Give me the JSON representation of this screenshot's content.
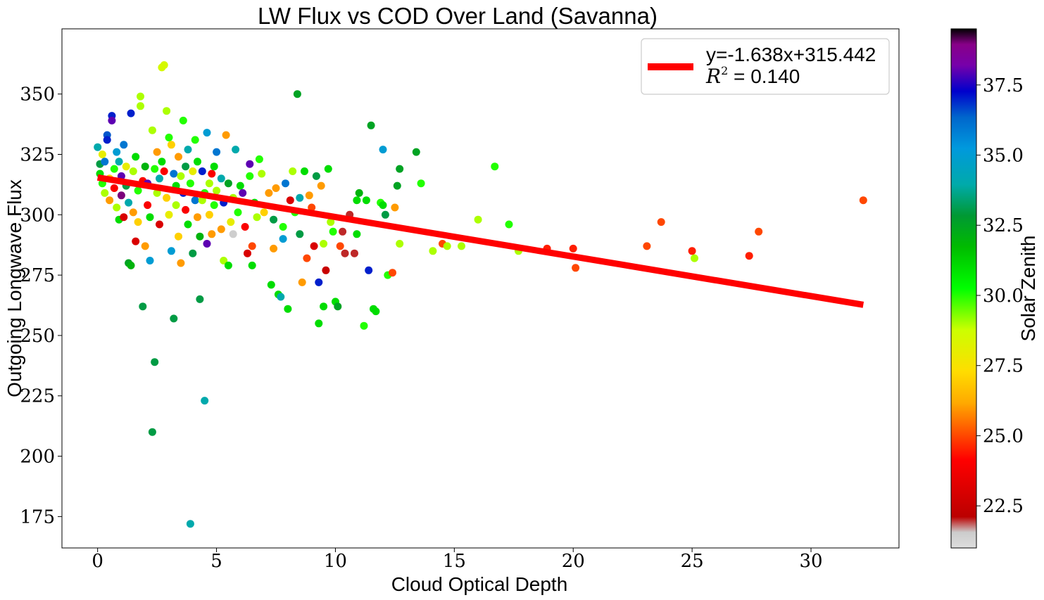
{
  "chart_data": {
    "type": "scatter",
    "title": "LW Flux vs COD Over Land (Savanna)",
    "xlabel": "Cloud Optical Depth",
    "ylabel": "Outgoing Longwave Flux",
    "xlim": [
      -1.5,
      33.7
    ],
    "ylim": [
      162,
      377
    ],
    "xticks": [
      0,
      5,
      10,
      15,
      20,
      25,
      30
    ],
    "yticks": [
      175,
      200,
      225,
      250,
      275,
      300,
      325,
      350
    ],
    "grid": false,
    "legend": {
      "placement": "top-right",
      "entries": [
        {
          "text": "y=-1.638x+315.442",
          "color": "#ff0000"
        },
        {
          "r2_symbol": "R",
          "r2_exp": "2",
          "r2_value": " = 0.140"
        }
      ]
    },
    "fit_line": {
      "slope": -1.638,
      "intercept": 315.442,
      "x_range": [
        0,
        32.2
      ],
      "color": "#ff0000"
    },
    "colorbar": {
      "label": "Solar Zenith",
      "range": [
        21.0,
        39.5
      ],
      "ticks": [
        22.5,
        25.0,
        27.5,
        30.0,
        32.5,
        35.0,
        37.5
      ],
      "colormap": "nipy_spectral"
    },
    "series": [
      {
        "columns": [
          "x",
          "y",
          "solar_zenith"
        ],
        "points": [
          [
            0.0,
            328,
            34
          ],
          [
            0.1,
            321,
            33
          ],
          [
            0.1,
            317,
            31
          ],
          [
            0.2,
            325,
            28
          ],
          [
            0.2,
            313,
            30
          ],
          [
            0.3,
            309,
            29
          ],
          [
            0.3,
            322,
            36
          ],
          [
            0.4,
            333,
            36.5
          ],
          [
            0.4,
            331,
            37
          ],
          [
            0.5,
            315,
            27
          ],
          [
            0.5,
            306,
            26
          ],
          [
            0.6,
            341,
            37
          ],
          [
            0.6,
            339,
            38
          ],
          [
            0.7,
            319,
            30
          ],
          [
            0.7,
            311,
            24
          ],
          [
            0.8,
            326,
            35
          ],
          [
            0.8,
            303,
            29
          ],
          [
            0.9,
            298,
            31
          ],
          [
            0.9,
            322,
            34
          ],
          [
            1.0,
            316,
            38
          ],
          [
            1.0,
            308,
            39
          ],
          [
            1.1,
            299,
            23
          ],
          [
            1.1,
            329,
            36
          ],
          [
            1.2,
            312,
            33
          ],
          [
            1.2,
            320,
            28
          ],
          [
            1.3,
            305,
            34
          ],
          [
            1.3,
            280,
            32.5
          ],
          [
            1.4,
            279,
            32
          ],
          [
            1.4,
            342,
            37
          ],
          [
            1.5,
            318,
            29
          ],
          [
            1.5,
            301,
            26
          ],
          [
            1.6,
            289,
            23
          ],
          [
            1.6,
            324,
            31
          ],
          [
            1.7,
            310,
            30
          ],
          [
            1.7,
            297,
            27
          ],
          [
            1.8,
            345,
            29
          ],
          [
            1.8,
            349,
            29
          ],
          [
            1.9,
            314,
            24
          ],
          [
            1.9,
            262,
            33
          ],
          [
            2.0,
            320,
            32
          ],
          [
            2.0,
            287,
            26
          ],
          [
            2.1,
            313,
            38
          ],
          [
            2.1,
            304,
            24
          ],
          [
            2.2,
            299,
            31
          ],
          [
            2.2,
            281,
            35
          ],
          [
            2.3,
            210,
            33
          ],
          [
            2.3,
            335,
            29
          ],
          [
            2.4,
            319,
            30
          ],
          [
            2.4,
            239,
            33
          ],
          [
            2.5,
            326,
            26
          ],
          [
            2.5,
            309,
            29
          ],
          [
            2.6,
            296,
            23
          ],
          [
            2.6,
            315,
            34
          ],
          [
            2.7,
            322,
            31
          ],
          [
            2.7,
            361,
            28.5
          ],
          [
            2.8,
            362,
            28.5
          ],
          [
            2.8,
            318,
            24
          ],
          [
            2.9,
            343,
            29
          ],
          [
            2.9,
            307,
            27
          ],
          [
            3.0,
            332,
            30
          ],
          [
            3.0,
            300,
            28
          ],
          [
            3.1,
            329,
            27
          ],
          [
            3.1,
            285,
            35
          ],
          [
            3.2,
            317,
            36
          ],
          [
            3.2,
            257,
            33
          ],
          [
            3.3,
            312,
            31
          ],
          [
            3.3,
            304,
            29
          ],
          [
            3.4,
            324,
            26
          ],
          [
            3.4,
            291,
            27
          ],
          [
            3.5,
            316,
            29
          ],
          [
            3.5,
            280,
            26
          ],
          [
            3.6,
            339,
            30
          ],
          [
            3.6,
            309,
            37
          ],
          [
            3.7,
            302,
            24
          ],
          [
            3.7,
            320,
            33
          ],
          [
            3.8,
            327,
            34
          ],
          [
            3.8,
            296,
            31
          ],
          [
            3.9,
            313,
            30
          ],
          [
            3.9,
            172,
            34
          ],
          [
            4.0,
            318,
            28
          ],
          [
            4.0,
            284,
            33
          ],
          [
            4.1,
            306,
            36
          ],
          [
            4.1,
            331,
            30
          ],
          [
            4.2,
            322,
            31
          ],
          [
            4.2,
            299,
            26
          ],
          [
            4.3,
            291,
            32
          ],
          [
            4.3,
            265,
            33
          ],
          [
            4.4,
            318,
            37
          ],
          [
            4.4,
            306,
            29
          ],
          [
            4.5,
            309,
            30
          ],
          [
            4.5,
            223,
            34
          ],
          [
            4.6,
            288,
            38
          ],
          [
            4.6,
            334,
            35
          ],
          [
            4.7,
            313,
            29
          ],
          [
            4.7,
            300,
            27
          ],
          [
            4.8,
            317,
            24
          ],
          [
            4.8,
            292,
            26
          ],
          [
            4.9,
            320,
            31
          ],
          [
            4.9,
            304,
            30
          ],
          [
            5.0,
            326,
            36
          ],
          [
            5.0,
            310,
            29
          ],
          [
            5.2,
            315,
            34
          ],
          [
            5.2,
            294,
            26
          ],
          [
            5.3,
            305,
            37
          ],
          [
            5.3,
            281,
            29
          ],
          [
            5.4,
            333,
            26
          ],
          [
            5.5,
            279,
            31
          ],
          [
            5.5,
            313,
            32.5
          ],
          [
            5.6,
            297,
            28
          ],
          [
            5.7,
            307,
            29
          ],
          [
            5.7,
            292,
            21.5
          ],
          [
            5.8,
            327,
            34
          ],
          [
            5.9,
            301,
            30
          ],
          [
            6.0,
            312,
            31
          ],
          [
            6.1,
            309,
            38
          ],
          [
            6.2,
            295,
            24
          ],
          [
            6.3,
            284,
            23
          ],
          [
            6.4,
            321,
            38
          ],
          [
            6.4,
            316,
            30
          ],
          [
            6.5,
            287,
            25
          ],
          [
            6.5,
            279,
            31
          ],
          [
            6.6,
            305,
            31
          ],
          [
            6.7,
            299,
            29
          ],
          [
            6.8,
            323,
            30
          ],
          [
            6.9,
            317,
            29
          ],
          [
            7.0,
            301,
            27
          ],
          [
            7.2,
            309,
            26
          ],
          [
            7.3,
            271,
            31
          ],
          [
            7.4,
            298,
            33
          ],
          [
            7.4,
            286,
            26
          ],
          [
            7.5,
            311,
            26
          ],
          [
            7.6,
            267,
            31
          ],
          [
            7.7,
            266,
            34
          ],
          [
            7.8,
            295,
            30
          ],
          [
            7.8,
            290,
            35
          ],
          [
            7.9,
            313,
            36
          ],
          [
            8.0,
            261,
            31
          ],
          [
            8.1,
            306,
            23
          ],
          [
            8.2,
            318,
            29
          ],
          [
            8.3,
            301,
            30
          ],
          [
            8.4,
            350,
            32.5
          ],
          [
            8.5,
            307,
            34
          ],
          [
            8.5,
            292,
            33
          ],
          [
            8.6,
            272,
            26
          ],
          [
            8.7,
            318,
            31
          ],
          [
            8.8,
            282,
            25
          ],
          [
            8.9,
            308,
            26
          ],
          [
            9.0,
            303,
            25
          ],
          [
            9.1,
            287,
            23
          ],
          [
            9.2,
            316,
            33
          ],
          [
            9.3,
            272,
            37
          ],
          [
            9.3,
            255,
            31
          ],
          [
            9.4,
            312,
            26
          ],
          [
            9.5,
            288,
            29
          ],
          [
            9.5,
            262,
            31
          ],
          [
            9.6,
            277,
            22.5
          ],
          [
            9.7,
            319,
            31
          ],
          [
            9.8,
            297,
            29
          ],
          [
            9.9,
            293,
            30
          ],
          [
            10.0,
            264,
            31
          ],
          [
            10.1,
            262,
            32.5
          ],
          [
            10.2,
            287,
            25
          ],
          [
            10.3,
            293,
            22
          ],
          [
            10.4,
            284,
            22
          ],
          [
            10.6,
            300,
            22
          ],
          [
            10.8,
            284,
            22
          ],
          [
            10.9,
            306,
            31
          ],
          [
            10.9,
            292,
            31
          ],
          [
            11.0,
            309,
            32
          ],
          [
            11.2,
            254,
            30
          ],
          [
            11.3,
            306,
            31
          ],
          [
            11.4,
            277,
            37
          ],
          [
            11.5,
            337,
            32.5
          ],
          [
            11.6,
            261,
            31
          ],
          [
            11.7,
            260,
            31
          ],
          [
            11.9,
            305,
            30
          ],
          [
            12.0,
            304,
            31
          ],
          [
            12.0,
            327,
            35
          ],
          [
            12.1,
            300,
            33
          ],
          [
            12.2,
            275,
            30
          ],
          [
            12.4,
            276,
            25
          ],
          [
            12.5,
            303,
            26
          ],
          [
            12.6,
            312,
            32.5
          ],
          [
            12.7,
            319,
            32.5
          ],
          [
            12.7,
            288,
            29
          ],
          [
            13.4,
            326,
            32.5
          ],
          [
            13.6,
            313,
            30
          ],
          [
            14.1,
            285,
            29
          ],
          [
            14.5,
            288,
            25
          ],
          [
            14.7,
            287,
            29
          ],
          [
            15.3,
            287,
            29
          ],
          [
            16.0,
            298,
            29
          ],
          [
            16.7,
            320,
            30
          ],
          [
            17.3,
            296,
            30
          ],
          [
            17.7,
            285,
            29
          ],
          [
            18.9,
            286,
            24.5
          ],
          [
            20.0,
            286,
            24.5
          ],
          [
            20.1,
            278,
            25
          ],
          [
            23.1,
            287,
            25
          ],
          [
            23.7,
            297,
            25
          ],
          [
            25.0,
            285,
            24.5
          ],
          [
            25.1,
            282,
            29
          ],
          [
            27.4,
            283,
            24.5
          ],
          [
            27.8,
            293,
            25
          ],
          [
            32.2,
            306,
            25
          ]
        ]
      }
    ]
  }
}
